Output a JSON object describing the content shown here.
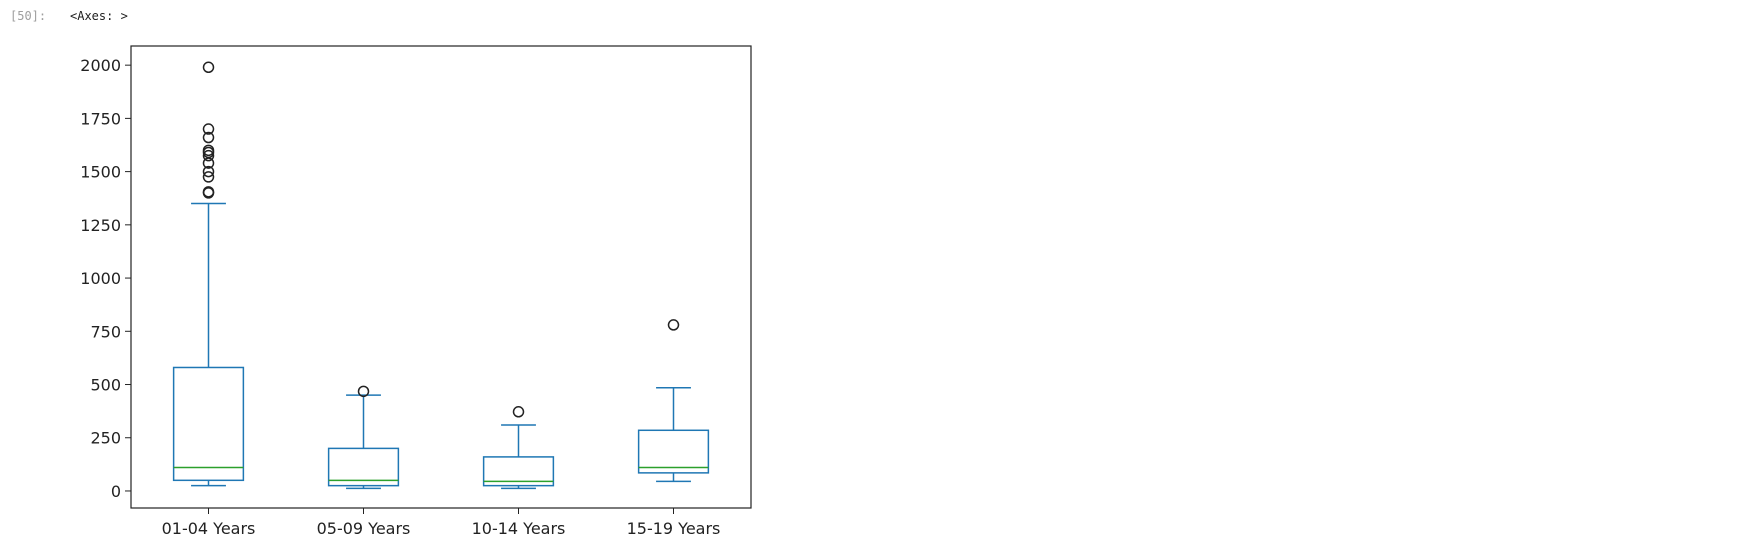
{
  "cell": {
    "prompt": "[50]:",
    "output_text": "<Axes: >"
  },
  "chart_data": {
    "type": "box",
    "categories": [
      "01-04 Years",
      "05-09 Years",
      "10-14 Years",
      "15-19 Years"
    ],
    "ylim": [
      -80,
      2090
    ],
    "yticks": [
      0,
      250,
      500,
      750,
      1000,
      1250,
      1500,
      1750,
      2000
    ],
    "grid": false,
    "box_color": "#1f77b4",
    "median_color": "#2ca02c",
    "outlier_edge_color": "#222222",
    "boxes": [
      {
        "category": "01-04 Years",
        "whisker_low": 25,
        "q1": 50,
        "median": 110,
        "q3": 580,
        "whisker_high": 1350,
        "outliers": [
          1400,
          1405,
          1475,
          1500,
          1540,
          1575,
          1590,
          1600,
          1660,
          1700,
          1990
        ]
      },
      {
        "category": "05-09 Years",
        "whisker_low": 12,
        "q1": 25,
        "median": 50,
        "q3": 200,
        "whisker_high": 450,
        "outliers": [
          468
        ]
      },
      {
        "category": "10-14 Years",
        "whisker_low": 12,
        "q1": 25,
        "median": 45,
        "q3": 160,
        "whisker_high": 310,
        "outliers": [
          372
        ]
      },
      {
        "category": "15-19 Years",
        "whisker_low": 45,
        "q1": 85,
        "median": 110,
        "q3": 285,
        "whisker_high": 485,
        "outliers": [
          780
        ]
      }
    ]
  }
}
